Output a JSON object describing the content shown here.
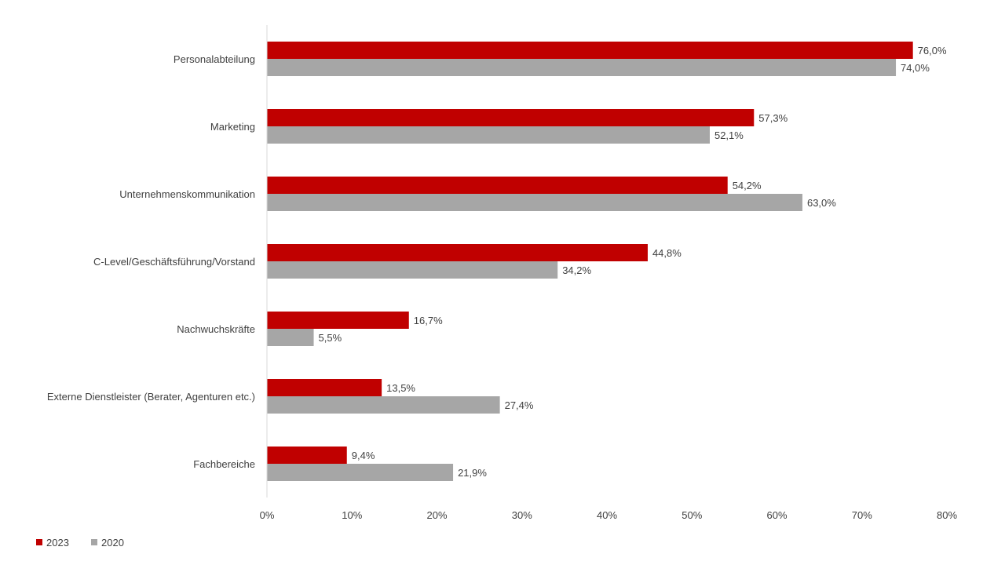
{
  "chart_data": {
    "type": "bar",
    "orientation": "horizontal",
    "categories": [
      "Personalabteilung",
      "Marketing",
      "Unternehmenskommunikation",
      "C-Level/Geschäftsführung/Vorstand",
      "Nachwuchskräfte",
      "Externe Dienstleister (Berater, Agenturen etc.)",
      "Fachbereiche"
    ],
    "series": [
      {
        "name": "2023",
        "color": "#c00000",
        "values": [
          76.0,
          57.3,
          54.2,
          44.8,
          16.7,
          13.5,
          9.4
        ],
        "labels": [
          "76,0%",
          "57,3%",
          "54,2%",
          "44,8%",
          "16,7%",
          "13,5%",
          "9,4%"
        ]
      },
      {
        "name": "2020",
        "color": "#a6a6a6",
        "values": [
          74.0,
          52.1,
          63.0,
          34.2,
          5.5,
          27.4,
          21.9
        ],
        "labels": [
          "74,0%",
          "52,1%",
          "63,0%",
          "34,2%",
          "5,5%",
          "27,4%",
          "21,9%"
        ]
      }
    ],
    "xlim": [
      0,
      80
    ],
    "xticks": [
      "0%",
      "10%",
      "20%",
      "30%",
      "40%",
      "50%",
      "60%",
      "70%",
      "80%"
    ],
    "title": "",
    "xlabel": "",
    "ylabel": "",
    "grid": false,
    "legend_position": "bottom-left"
  }
}
